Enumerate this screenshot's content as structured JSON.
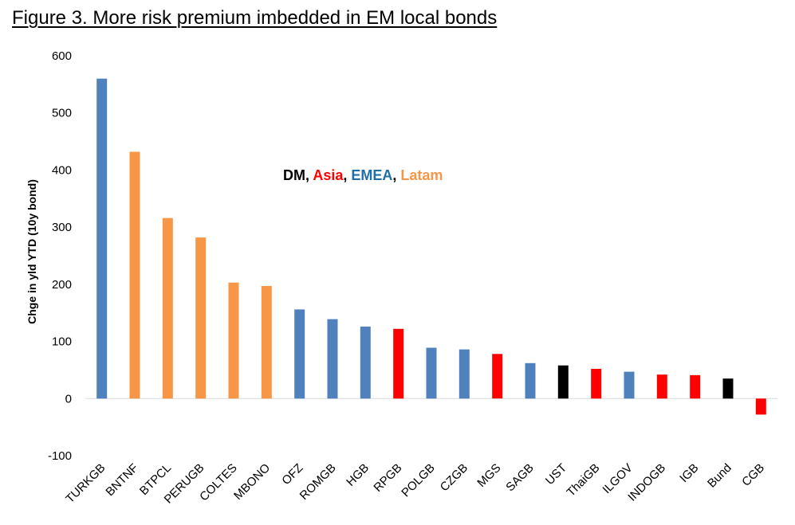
{
  "title": "Figure 3. More risk premium imbedded in EM local bonds",
  "colors": {
    "DM": "#000000",
    "Asia": "#ff0000",
    "EMEA": "#4f81bd",
    "Latam": "#f79646",
    "EMEA_text": "#1f6fa8"
  },
  "legend": [
    {
      "label": "DM",
      "group": "DM",
      "sep": ", "
    },
    {
      "label": "Asia",
      "group": "Asia",
      "sep": ", "
    },
    {
      "label": "EMEA",
      "group": "EMEA",
      "sep": ", "
    },
    {
      "label": "Latam",
      "group": "Latam",
      "sep": ""
    }
  ],
  "chart_data": {
    "type": "bar",
    "title": "Figure 3. More risk premium imbedded in EM local bonds",
    "xlabel": "",
    "ylabel": "Chge in yld YTD (10y bond)",
    "ylim": [
      -100,
      600
    ],
    "yticks": [
      -100,
      0,
      100,
      200,
      300,
      400,
      500,
      600
    ],
    "grid": false,
    "legend_position": "top-center",
    "categories": [
      "TURKGB",
      "BNTNF",
      "BTPCL",
      "PERUGB",
      "COLTES",
      "MBONO",
      "OFZ",
      "ROMGB",
      "HGB",
      "RPGB",
      "POLGB",
      "CZGB",
      "MGS",
      "SAGB",
      "UST",
      "ThaiGB",
      "ILGOV",
      "INDOGB",
      "IGB",
      "Bund",
      "CGB"
    ],
    "values": [
      560,
      432,
      316,
      282,
      203,
      197,
      156,
      139,
      126,
      122,
      89,
      86,
      78,
      62,
      58,
      52,
      47,
      42,
      41,
      35,
      -28
    ],
    "groups": [
      "EMEA",
      "Latam",
      "Latam",
      "Latam",
      "Latam",
      "Latam",
      "EMEA",
      "EMEA",
      "EMEA",
      "Asia",
      "EMEA",
      "EMEA",
      "Asia",
      "EMEA",
      "DM",
      "Asia",
      "EMEA",
      "Asia",
      "Asia",
      "DM",
      "Asia"
    ]
  }
}
